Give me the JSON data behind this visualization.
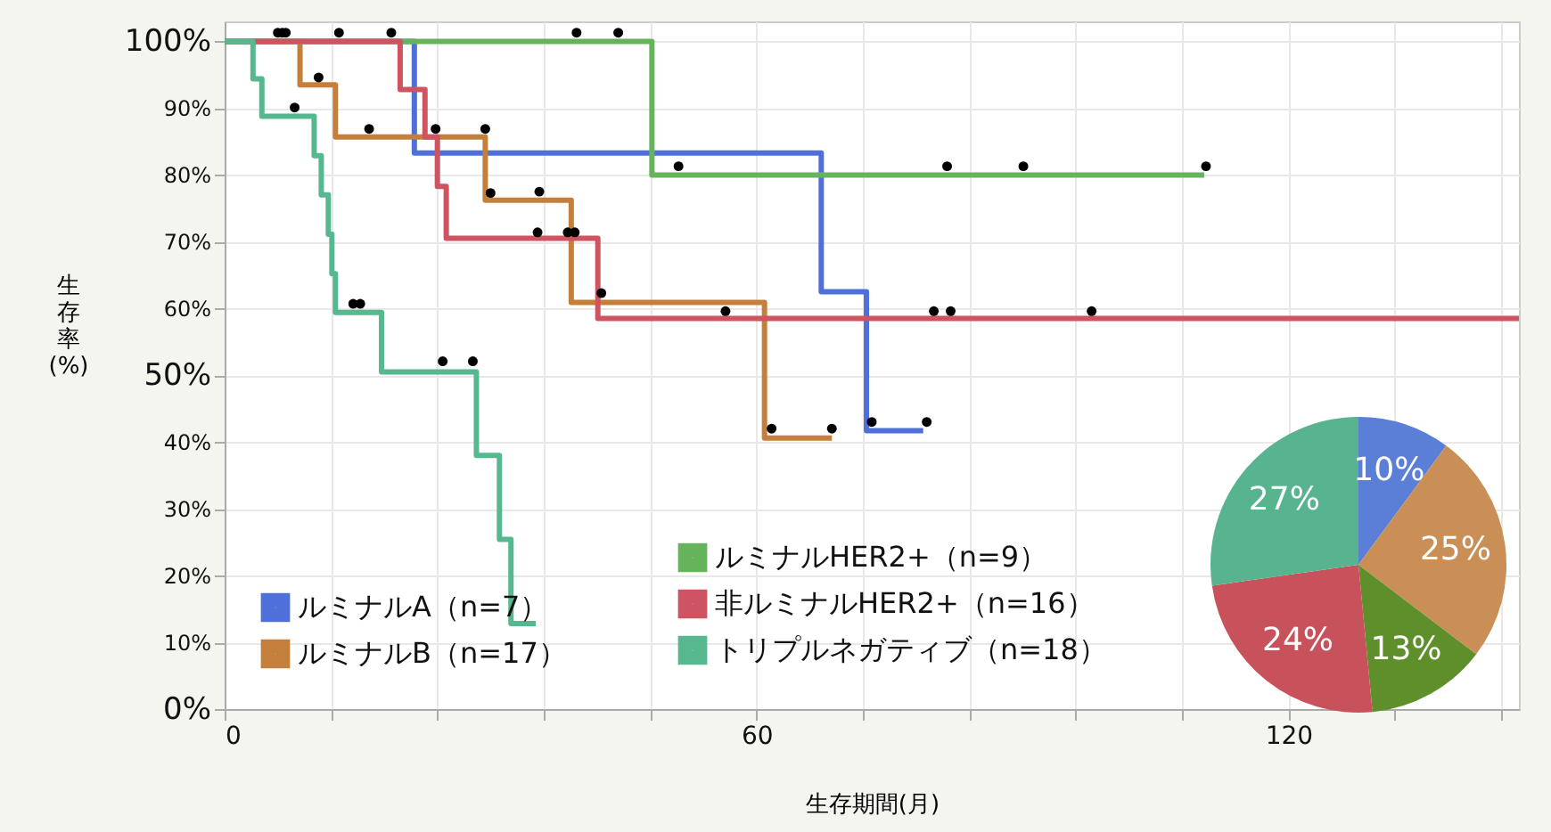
{
  "chart_data": [
    {
      "type": "step",
      "xlabel": "生存期間(月)",
      "ylabel": "生存率(%)",
      "xlim": [
        0,
        146
      ],
      "ylim": [
        0,
        103
      ],
      "xticks": [
        0,
        {
          "value": 12,
          "label": null
        },
        {
          "value": 24,
          "label": null
        },
        {
          "value": 36,
          "label": null
        },
        {
          "value": 48,
          "label": null
        },
        60,
        {
          "value": 72,
          "label": null
        },
        {
          "value": 84,
          "label": null
        },
        {
          "value": 96,
          "label": null
        },
        {
          "value": 108,
          "label": null
        },
        120,
        {
          "value": 132,
          "label": null
        },
        {
          "value": 144,
          "label": null
        }
      ],
      "yticks": [
        {
          "value": 0,
          "label": "0%"
        },
        {
          "value": 10,
          "label": "10%"
        },
        {
          "value": 20,
          "label": "20%"
        },
        {
          "value": 30,
          "label": "30%"
        },
        {
          "value": 40,
          "label": "40%"
        },
        {
          "value": 50,
          "label": "50%"
        },
        {
          "value": 60,
          "label": "60%"
        },
        {
          "value": 70,
          "label": "70%"
        },
        {
          "value": 80,
          "label": "80%"
        },
        {
          "value": 90,
          "label": "90%"
        },
        {
          "value": 100,
          "label": "100%"
        }
      ],
      "grid": true,
      "legend": "bottom",
      "line_style": "solid",
      "series": [
        {
          "name": "ルミナルA（n=7）",
          "color": "#4f6fd9",
          "x": [
            0,
            21.4,
            67.3,
            72.4,
            78.8
          ],
          "values": [
            100,
            83.3,
            62.5,
            41.7,
            41.7
          ]
        },
        {
          "name": "ルミナルB（n=17）",
          "color": "#c47f3c",
          "x": [
            0,
            8.5,
            12.5,
            29.4,
            39.1,
            60.9,
            68.5
          ],
          "values": [
            100,
            93.5,
            85.7,
            76.2,
            60.9,
            40.6,
            40.6
          ]
        },
        {
          "name": "ルミナルHER2+（n=9）",
          "color": "#65b35a",
          "x": [
            0,
            48.2,
            110.5
          ],
          "values": [
            100,
            80,
            80
          ]
        },
        {
          "name": "非ルミナルHER2+（n=16）",
          "color": "#cd5460",
          "x": [
            0,
            19.8,
            22.6,
            24.0,
            25.0,
            42.1,
            146
          ],
          "values": [
            100,
            92.8,
            85.7,
            78.3,
            70.5,
            58.5,
            58.5
          ]
        },
        {
          "name": "トリプルネガティブ（n=18）",
          "color": "#57b88f",
          "x": [
            0,
            3.2,
            4.2,
            10.1,
            10.9,
            11.7,
            12.1,
            12.5,
            17.7,
            28.4,
            31.0,
            32.3,
            35.1
          ],
          "values": [
            100,
            94.4,
            88.8,
            82.9,
            77.0,
            71.1,
            65.2,
            59.4,
            50.5,
            38.0,
            25.4,
            12.8,
            12.8
          ]
        },
        {
          "type": "scatter",
          "marker": "circle",
          "color": "#000000",
          "x": [
            6.0,
            6.5,
            6.9,
            12.9,
            18.8,
            39.7,
            44.4,
            51.2,
            81.5,
            90.1,
            110.7,
            7.9,
            10.6,
            16.3,
            23.8,
            29.4,
            30.0,
            14.5,
            15.3,
            24.6,
            28.0,
            35.5,
            35.3,
            38.7,
            39.5,
            42.5,
            56.5,
            80.0,
            81.9,
            97.8,
            61.7,
            68.5,
            73.0,
            79.2
          ],
          "values": [
            101.3,
            101.3,
            101.3,
            101.3,
            101.3,
            101.3,
            101.3,
            81.3,
            81.3,
            81.3,
            81.3,
            90.1,
            94.6,
            86.9,
            86.9,
            86.9,
            77.3,
            60.7,
            60.7,
            52.1,
            52.1,
            77.5,
            71.4,
            71.4,
            71.4,
            62.3,
            59.6,
            59.6,
            59.6,
            59.6,
            42.0,
            42.0,
            43.0,
            43.0
          ]
        }
      ]
    },
    {
      "type": "pie",
      "categories": [
        null,
        null,
        null,
        null,
        null
      ],
      "values": [
        10,
        25,
        13,
        24,
        27
      ],
      "colors": [
        "#5b7fd6",
        "#c98f57",
        "#5e8f2a",
        "#c7525c",
        "#58b48f"
      ],
      "value_labels": [
        "10%",
        "25%",
        "13%",
        "24%",
        "27%"
      ]
    }
  ]
}
